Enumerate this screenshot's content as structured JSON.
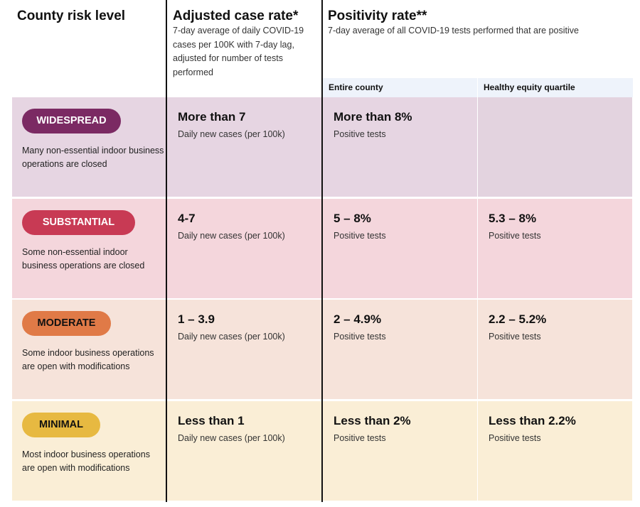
{
  "headers": {
    "risk": "County risk level",
    "case": "Adjusted case rate*",
    "case_desc": "7-day average of daily COVID-19 cases per 100K with 7-day lag, adjusted for number of tests performed",
    "pos": "Positivity rate**",
    "pos_desc": "7-day average of all COVID-19 tests performed that are positive",
    "entire": "Entire county",
    "equity": "Healthy equity quartile"
  },
  "rows": [
    {
      "tier": "WIDESPREAD",
      "desc": "Many non-essential indoor business operations are closed",
      "case": "More than 7",
      "case_label": "Daily new cases (per 100k)",
      "entire": "More than 8%",
      "entire_label": "Positive tests",
      "equity": "",
      "equity_label": "",
      "bg": "#e6d5e2",
      "pill": "#7b2a63",
      "pill_text": "#ffffff"
    },
    {
      "tier": "SUBSTANTIAL",
      "desc": "Some non-essential indoor business operations are closed",
      "case": "4-7",
      "case_label": "Daily new cases (per 100k)",
      "entire": "5 – 8%",
      "entire_label": "Positive tests",
      "equity": "5.3 – 8%",
      "equity_label": "Positive tests",
      "bg": "#f4d6dc",
      "pill": "#c83a54",
      "pill_text": "#ffffff"
    },
    {
      "tier": "MODERATE",
      "desc": "Some indoor business operations are open with modifications",
      "case": "1 – 3.9",
      "case_label": "Daily new cases (per 100k)",
      "entire": "2 – 4.9%",
      "entire_label": "Positive tests",
      "equity": "2.2 – 5.2%",
      "equity_label": "Positive tests",
      "bg": "#f6e3da",
      "pill": "#e07a47",
      "pill_text": "#111111"
    },
    {
      "tier": "MINIMAL",
      "desc": "Most indoor business operations are open with modifications",
      "case": "Less than 1",
      "case_label": "Daily new cases (per 100k)",
      "entire": "Less than 2%",
      "entire_label": "Positive tests",
      "equity": "Less than 2.2%",
      "equity_label": "Positive tests",
      "bg": "#faeed6",
      "pill": "#e7b941",
      "pill_text": "#111111"
    }
  ]
}
